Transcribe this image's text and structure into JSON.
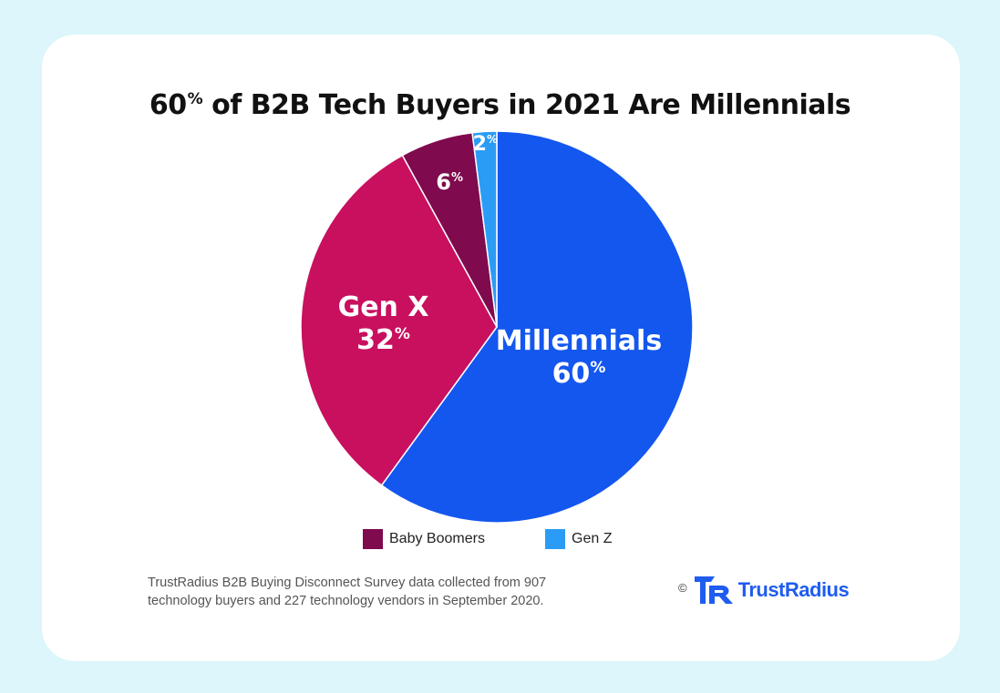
{
  "chart_data": {
    "type": "pie",
    "title": "60% of B2B Tech Buyers in 2021 Are Millennials",
    "title_main": "60",
    "title_pct": "%",
    "title_rest": " of B2B Tech Buyers in 2021 Are Millennials",
    "slices": [
      {
        "name": "Millennials",
        "value": 60,
        "label_name": "Millennials",
        "label_value": "60",
        "color": "#1457ef"
      },
      {
        "name": "Gen X",
        "value": 32,
        "label_name": "Gen X",
        "label_value": "32",
        "color": "#c8105f"
      },
      {
        "name": "Baby Boomers",
        "value": 6,
        "label_name": "",
        "label_value": "6",
        "color": "#7f0a4e"
      },
      {
        "name": "Gen Z",
        "value": 2,
        "label_name": "",
        "label_value": "2",
        "color": "#2a9cf5"
      }
    ],
    "percent_sign": "%",
    "legend": [
      {
        "label": "Baby Boomers",
        "color": "#7f0a4e"
      },
      {
        "label": "Gen Z",
        "color": "#2a9cf5"
      }
    ],
    "legend_placement": "bottom",
    "grid": false
  },
  "footnote": {
    "line1": "TrustRadius B2B Buying Disconnect Survey data collected from 907",
    "line2": "technology buyers and 227 technology vendors in September 2020."
  },
  "brand": {
    "copyright": "©",
    "name": "TrustRadius",
    "logo_icon": "trustradius-logo-icon",
    "color": "#1f5cf0"
  }
}
